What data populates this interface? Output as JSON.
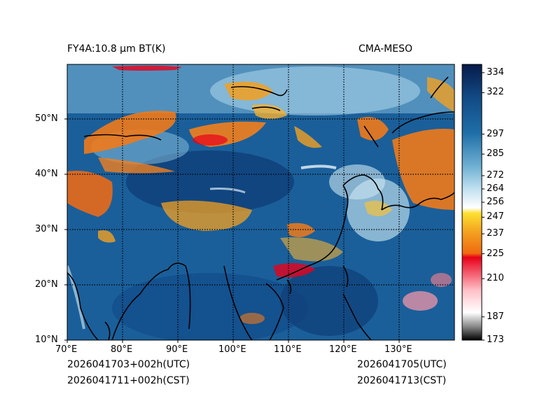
{
  "header": {
    "title_left": "FY4A:10.8 µm BT(K)",
    "title_right": "CMA-MESO"
  },
  "footer": {
    "init_utc": "2026041703+002h(UTC)",
    "init_cst": "2026041711+002h(CST)",
    "valid_utc": "2026041705(UTC)",
    "valid_cst": "2026041713(CST)"
  },
  "map": {
    "lon_labels": [
      "70°E",
      "80°E",
      "90°E",
      "100°E",
      "110°E",
      "120°E",
      "130°E"
    ],
    "lat_labels": [
      "10°N",
      "20°N",
      "30°N",
      "40°N",
      "50°N"
    ],
    "lon_values": [
      70,
      80,
      90,
      100,
      110,
      120,
      130
    ],
    "lat_values": [
      10,
      20,
      30,
      40,
      50
    ],
    "lon_range": [
      70,
      140
    ],
    "lat_range": [
      10,
      60
    ]
  },
  "colorbar": {
    "tick_labels": [
      "334",
      "322",
      "297",
      "285",
      "272",
      "264",
      "256",
      "247",
      "237",
      "225",
      "210",
      "187",
      "173"
    ],
    "tick_values": [
      334,
      322,
      297,
      285,
      272,
      264,
      256,
      247,
      237,
      225,
      210,
      187,
      173
    ],
    "range": [
      173,
      339
    ],
    "colors": {
      "navy": "#0a1f4f",
      "blue": "#1a5f9a",
      "light_blue": "#8ec6e0",
      "white": "#ffffff",
      "yellow": "#f5c23a",
      "orange": "#f07a1a",
      "red": "#e8001a",
      "pink": "#ffd0d8",
      "black": "#000000"
    }
  }
}
